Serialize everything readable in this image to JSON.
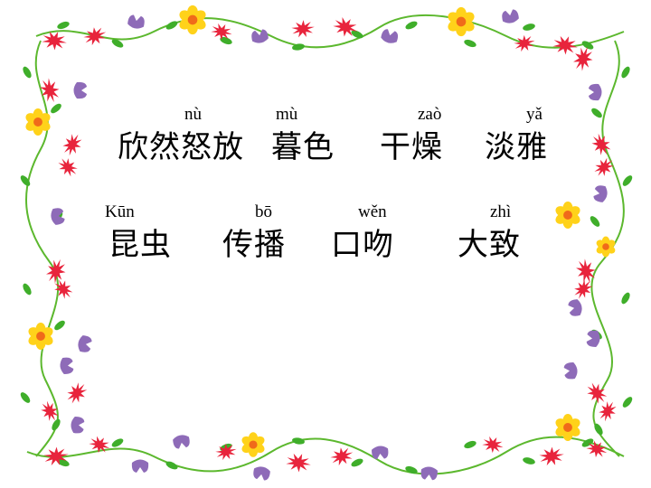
{
  "row1": {
    "pinyin": [
      "nù",
      "mù",
      "zaò",
      "yǎ"
    ],
    "words": [
      "欣然怒放",
      "暮色",
      "干燥",
      "淡雅"
    ]
  },
  "row2": {
    "pinyin": [
      "Kūn",
      "bō",
      "wěn",
      "zhì"
    ],
    "words": [
      "昆虫",
      "传播",
      "口吻",
      "大致"
    ]
  },
  "colors": {
    "vine": "#5cb82e",
    "leaf": "#3fae2a",
    "red_flower": "#e8243c",
    "purple_flower": "#8e6bb8",
    "yellow_flower": "#ffd21a",
    "flower_center": "#f06a1a"
  }
}
